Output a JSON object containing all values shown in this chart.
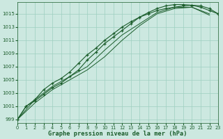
{
  "title": "Graphe pression niveau de la mer (hPa)",
  "bg_color": "#cce8e0",
  "grid_color": "#9ecfbf",
  "line_color": "#1a5c2a",
  "xlim": [
    0,
    23
  ],
  "ylim": [
    998.5,
    1016.8
  ],
  "yticks": [
    999,
    1001,
    1003,
    1005,
    1007,
    1009,
    1011,
    1013,
    1015
  ],
  "xticks": [
    0,
    1,
    2,
    3,
    4,
    5,
    6,
    7,
    8,
    9,
    10,
    11,
    12,
    13,
    14,
    15,
    16,
    17,
    18,
    19,
    20,
    21,
    22,
    23
  ],
  "series": [
    {
      "x": [
        0,
        1,
        2,
        3,
        4,
        5,
        6,
        7,
        8,
        9,
        10,
        11,
        12,
        13,
        14,
        15,
        16,
        17,
        18,
        19,
        20,
        21,
        22,
        23
      ],
      "y": [
        999.0,
        1001.0,
        1002.0,
        1003.5,
        1004.5,
        1005.2,
        1006.2,
        1007.5,
        1008.8,
        1009.8,
        1011.0,
        1012.0,
        1013.0,
        1013.8,
        1014.5,
        1015.0,
        1015.5,
        1015.8,
        1016.0,
        1016.2,
        1016.3,
        1016.2,
        1015.8,
        1015.0
      ],
      "marker": true
    },
    {
      "x": [
        0,
        1,
        2,
        3,
        4,
        5,
        6,
        7,
        8,
        9,
        10,
        11,
        12,
        13,
        14,
        15,
        16,
        17,
        18,
        19,
        20,
        21,
        22,
        23
      ],
      "y": [
        999.0,
        1001.0,
        1001.8,
        1002.8,
        1003.8,
        1004.5,
        1005.5,
        1006.5,
        1008.0,
        1009.2,
        1010.5,
        1011.5,
        1012.5,
        1013.5,
        1014.5,
        1015.2,
        1015.8,
        1016.2,
        1016.4,
        1016.4,
        1016.3,
        1016.0,
        1015.5,
        1015.0
      ],
      "marker": true
    },
    {
      "x": [
        0,
        2,
        4,
        6,
        8,
        10,
        12,
        14,
        16,
        18,
        20,
        22
      ],
      "y": [
        999.0,
        1001.5,
        1003.5,
        1005.0,
        1006.5,
        1008.5,
        1011.0,
        1013.2,
        1015.0,
        1015.8,
        1016.0,
        1015.0
      ],
      "marker": false
    },
    {
      "x": [
        0,
        2,
        4,
        6,
        8,
        10,
        12,
        14,
        16,
        18,
        20,
        22
      ],
      "y": [
        999.0,
        1002.0,
        1004.0,
        1005.5,
        1007.0,
        1009.5,
        1011.8,
        1013.5,
        1015.2,
        1016.0,
        1016.0,
        1014.8
      ],
      "marker": false
    }
  ]
}
